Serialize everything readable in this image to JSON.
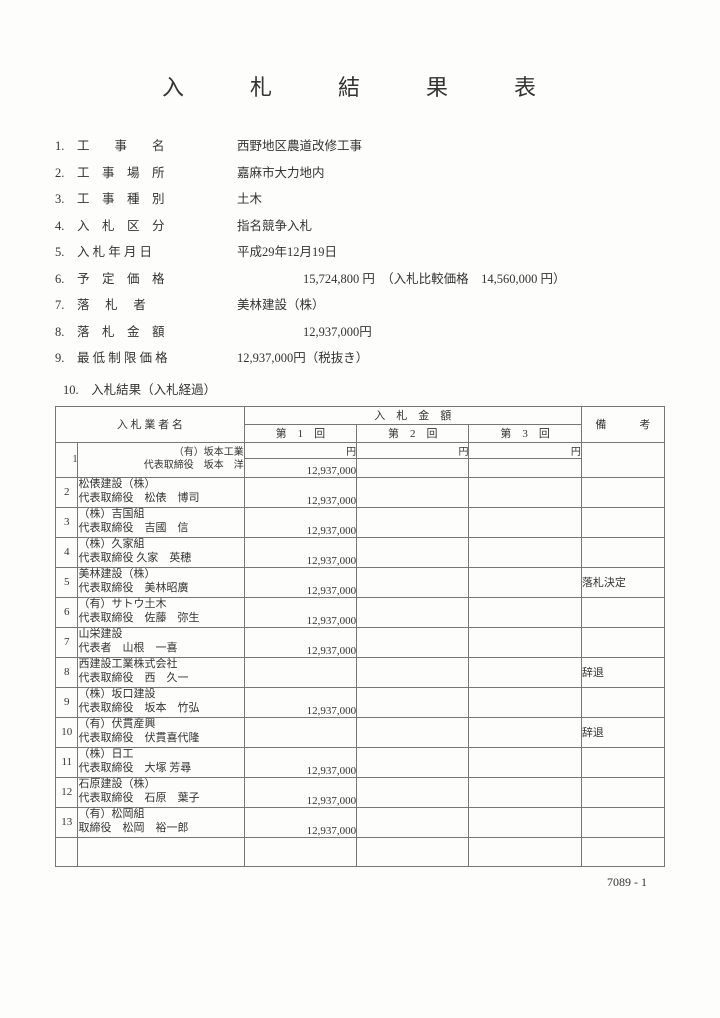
{
  "title": "入　札　結　果　表",
  "meta": [
    {
      "num": "1.",
      "label": "工　　事　　名",
      "value": "西野地区農道改修工事"
    },
    {
      "num": "2.",
      "label": "工　事　場　所",
      "value": "嘉麻市大力地内"
    },
    {
      "num": "3.",
      "label": "工　事　種　別",
      "value": "土木"
    },
    {
      "num": "4.",
      "label": "入　札　区　分",
      "value": "指名競争入札"
    },
    {
      "num": "5.",
      "label": "入 札 年 月 日",
      "value": "平成29年12月19日"
    },
    {
      "num": "6.",
      "label": "予　定　価　格",
      "value": "15,724,800 円　（入札比較価格　14,560,000 円）",
      "indent": true
    },
    {
      "num": "7.",
      "label": "落　 札 　者",
      "value": "美林建設（株）"
    },
    {
      "num": "8.",
      "label": "落　札　金　額",
      "value": "12,937,000円",
      "indent": true
    },
    {
      "num": "9.",
      "label": "最 低 制 限 価 格",
      "value": "12,937,000円（税抜き）"
    }
  ],
  "sub10": "10.　入札結果（入札経過）",
  "table": {
    "head_name": "入 札 業 者 名",
    "head_amount": "入　札　金　額",
    "head_note": "備　　　考",
    "round1": "第　1　回",
    "round2": "第　2　回",
    "round3": "第　3　回",
    "yen": "円",
    "rows": [
      {
        "no": "1",
        "l1": "（有）坂本工業",
        "l2": "代表取締役　坂本　洋",
        "r1": "12,937,000",
        "note": ""
      },
      {
        "no": "2",
        "l1": "松俵建設（株）",
        "l2": "代表取締役　松俵　博司",
        "r1": "12,937,000",
        "note": ""
      },
      {
        "no": "3",
        "l1": "（株）吉国組",
        "l2": "代表取締役　吉國　信",
        "r1": "12,937,000",
        "note": ""
      },
      {
        "no": "4",
        "l1": "（株）久家組",
        "l2": "代表取締役 久家　英穂",
        "r1": "12,937,000",
        "note": ""
      },
      {
        "no": "5",
        "l1": "美林建設（株）",
        "l2": "代表取締役　美林昭廣",
        "r1": "12,937,000",
        "note": "落札決定"
      },
      {
        "no": "6",
        "l1": "（有）サトウ土木",
        "l2": "代表取締役　佐藤　弥生",
        "r1": "12,937,000",
        "note": ""
      },
      {
        "no": "7",
        "l1": "山栄建設",
        "l2": "代表者　山根　一喜",
        "r1": "12,937,000",
        "note": ""
      },
      {
        "no": "8",
        "l1": "西建設工業株式会社",
        "l2": "代表取締役　西　久一",
        "r1": "",
        "note": "辞退"
      },
      {
        "no": "9",
        "l1": "（株）坂口建設",
        "l2": "代表取締役　坂本　竹弘",
        "r1": "12,937,000",
        "note": ""
      },
      {
        "no": "10",
        "l1": "（有）伏貫産興",
        "l2": "代表取締役　伏貫喜代隆",
        "r1": "",
        "note": "辞退"
      },
      {
        "no": "11",
        "l1": "（株）日工",
        "l2": "代表取締役　大塚 芳尋",
        "r1": "12,937,000",
        "note": ""
      },
      {
        "no": "12",
        "l1": "石原建設（株）",
        "l2": "代表取締役　石原　葉子",
        "r1": "12,937,000",
        "note": ""
      },
      {
        "no": "13",
        "l1": "（有）松岡組",
        "l2": "取締役　松岡　裕一郎",
        "r1": "12,937,000",
        "note": ""
      }
    ]
  },
  "footer": "7089 - 1"
}
